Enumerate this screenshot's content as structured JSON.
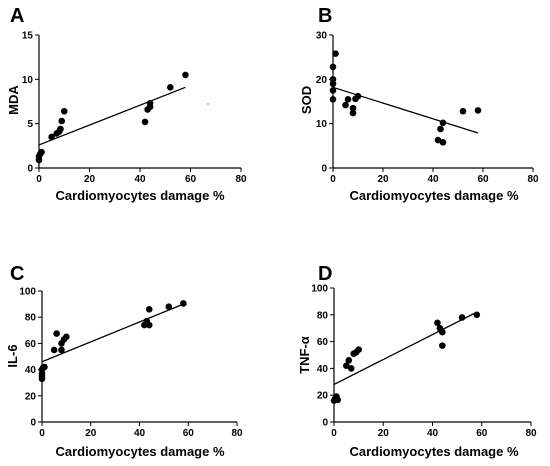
{
  "chart_data": [
    {
      "type": "scatter",
      "panel_label": "A",
      "title": "",
      "xlabel": "Cardiomyocytes damage %",
      "ylabel": "MDA",
      "xlim": [
        0,
        80
      ],
      "ylim": [
        0,
        15
      ],
      "xticks": [
        0,
        20,
        40,
        60,
        80
      ],
      "yticks": [
        0,
        5,
        10,
        15
      ],
      "grid": false,
      "points": [
        [
          0,
          0.9
        ],
        [
          0,
          1.3
        ],
        [
          0.5,
          1.6
        ],
        [
          1,
          1.8
        ],
        [
          5,
          3.5
        ],
        [
          7,
          3.9
        ],
        [
          8,
          4.1
        ],
        [
          8.5,
          4.4
        ],
        [
          9,
          5.3
        ],
        [
          10,
          6.4
        ],
        [
          42,
          5.2
        ],
        [
          43,
          6.6
        ],
        [
          44,
          6.9
        ],
        [
          44,
          7.3
        ],
        [
          52,
          9.1
        ],
        [
          58,
          10.5
        ]
      ],
      "regression": {
        "x": [
          0,
          58
        ],
        "y": [
          2.6,
          9.1
        ]
      }
    },
    {
      "type": "scatter",
      "panel_label": "B",
      "title": "",
      "xlabel": "Cardiomyocytes damage %",
      "ylabel": "SOD",
      "xlim": [
        0,
        80
      ],
      "ylim": [
        0,
        30
      ],
      "xticks": [
        0,
        20,
        40,
        60,
        80
      ],
      "yticks": [
        0,
        10,
        20,
        30
      ],
      "grid": false,
      "points": [
        [
          0,
          15.5
        ],
        [
          0,
          17.5
        ],
        [
          0,
          19
        ],
        [
          0,
          20
        ],
        [
          0,
          22.8
        ],
        [
          1,
          25.8
        ],
        [
          5,
          14.2
        ],
        [
          6,
          15.5
        ],
        [
          8,
          12.4
        ],
        [
          8,
          13.5
        ],
        [
          9,
          15.6
        ],
        [
          10,
          16.2
        ],
        [
          42,
          6.3
        ],
        [
          43,
          8.8
        ],
        [
          44,
          10.2
        ],
        [
          44,
          5.8
        ],
        [
          52,
          12.8
        ],
        [
          58,
          13
        ]
      ],
      "regression": {
        "x": [
          0,
          58
        ],
        "y": [
          18.2,
          7.9
        ]
      }
    },
    {
      "type": "scatter",
      "panel_label": "C",
      "title": "",
      "xlabel": "Cardiomyocytes damage %",
      "ylabel": "IL-6",
      "xlim": [
        0,
        80
      ],
      "ylim": [
        0,
        100
      ],
      "xticks": [
        0,
        20,
        40,
        60,
        80
      ],
      "yticks": [
        0,
        20,
        40,
        60,
        80,
        100
      ],
      "grid": false,
      "points": [
        [
          0,
          33
        ],
        [
          0,
          35
        ],
        [
          0,
          37
        ],
        [
          0,
          40
        ],
        [
          0.5,
          41.5
        ],
        [
          1,
          42
        ],
        [
          5,
          55
        ],
        [
          6,
          67.5
        ],
        [
          8,
          55
        ],
        [
          8,
          60
        ],
        [
          9,
          63
        ],
        [
          10,
          65
        ],
        [
          42,
          74
        ],
        [
          43,
          77
        ],
        [
          44,
          74
        ],
        [
          44,
          86
        ],
        [
          52,
          88
        ],
        [
          58,
          90.5
        ]
      ],
      "regression": {
        "x": [
          0,
          58
        ],
        "y": [
          46,
          90
        ]
      }
    },
    {
      "type": "scatter",
      "panel_label": "D",
      "title": "",
      "xlabel": "Cardiomyocytes damage %",
      "ylabel": "TNF-α",
      "xlim": [
        0,
        80
      ],
      "ylim": [
        0,
        100
      ],
      "xticks": [
        0,
        20,
        40,
        60,
        80
      ],
      "yticks": [
        0,
        20,
        40,
        60,
        80,
        100
      ],
      "grid": false,
      "points": [
        [
          0,
          16
        ],
        [
          0.5,
          17.5
        ],
        [
          1,
          19
        ],
        [
          1.5,
          16.5
        ],
        [
          5,
          42
        ],
        [
          6,
          46
        ],
        [
          7,
          40
        ],
        [
          8,
          51
        ],
        [
          9,
          52
        ],
        [
          10,
          54
        ],
        [
          42,
          74
        ],
        [
          43,
          70
        ],
        [
          44,
          67
        ],
        [
          44,
          57
        ],
        [
          52,
          78
        ],
        [
          58,
          80
        ]
      ],
      "regression": {
        "x": [
          0,
          58
        ],
        "y": [
          28,
          82
        ]
      }
    }
  ]
}
